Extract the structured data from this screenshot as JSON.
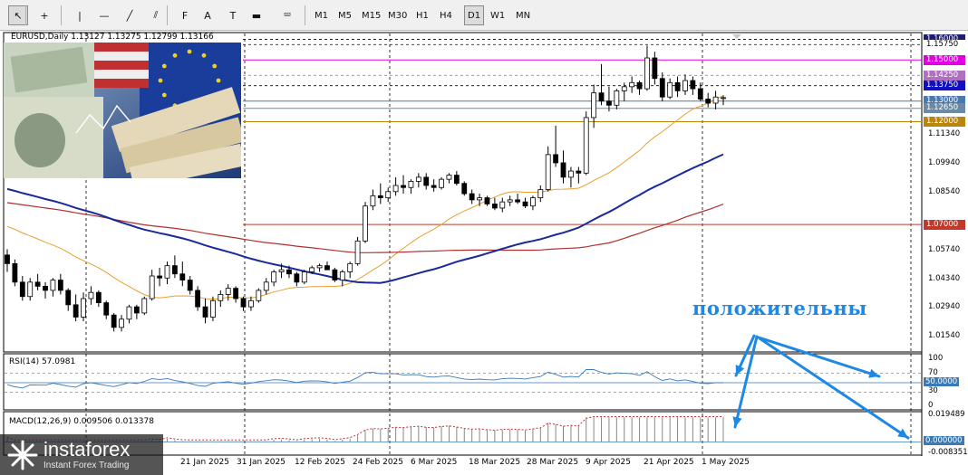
{
  "toolbar": {
    "tools": [
      {
        "name": "cursor-icon",
        "glyph": "↖"
      },
      {
        "name": "crosshair-icon",
        "glyph": "+"
      },
      {
        "name": "vertical-line-icon",
        "glyph": "|"
      },
      {
        "name": "horizontal-line-icon",
        "glyph": "—"
      },
      {
        "name": "trendline-icon",
        "glyph": "╱"
      },
      {
        "name": "channel-icon",
        "glyph": "⫽"
      },
      {
        "name": "fibonacci-icon",
        "glyph": "F"
      },
      {
        "name": "text-icon",
        "glyph": "A"
      },
      {
        "name": "text-label-icon",
        "glyph": "T"
      },
      {
        "name": "rectangle-icon",
        "glyph": "▬"
      },
      {
        "name": "shapes-icon",
        "glyph": "⮹"
      }
    ],
    "timeframes": [
      "M1",
      "M5",
      "M15",
      "M30",
      "H1",
      "H4",
      "D1",
      "W1",
      "MN"
    ],
    "active_timeframe": "D1"
  },
  "symbol_line": "EURUSD,Daily  1.13127 1.13275 1.12799 1.13166",
  "rsi_label": "RSI(14) 57.0981",
  "macd_label": "MACD(12,26,9) 0.009506 0.013378",
  "annotation": "положительны",
  "logo": {
    "brand": "instaforex",
    "tagline": "Instant Forex Trading"
  },
  "price_axis": [
    "1.11340",
    "1.09940",
    "1.08540",
    "1.05740",
    "1.04340",
    "1.02940",
    "1.01540"
  ],
  "price_tags": [
    {
      "label": "1.16000",
      "bg": "#1e1e70",
      "fg": "#ffffff"
    },
    {
      "label": "1.15750",
      "bg": "#ffffff",
      "fg": "#000000"
    },
    {
      "label": "1.15000",
      "bg": "#e000e0",
      "fg": "#ffffff"
    },
    {
      "label": "1.14250",
      "bg": "#b070c0",
      "fg": "#ffffff"
    },
    {
      "label": "1.13750",
      "bg": "#1010c0",
      "fg": "#ffffff"
    },
    {
      "label": "1.13000",
      "bg": "#4a78b0",
      "fg": "#ffffff"
    },
    {
      "label": "1.12650",
      "bg": "#6a8aa8",
      "fg": "#ffffff"
    },
    {
      "label": "1.12000",
      "bg": "#b8860b",
      "fg": "#ffffff"
    },
    {
      "label": "1.07000",
      "bg": "#c0392b",
      "fg": "#ffffff"
    }
  ],
  "rsi_axis": [
    "100",
    "70",
    "50.0000",
    "30",
    "0"
  ],
  "macd_axis": [
    "0.019489",
    "0.000000",
    "-0.008351"
  ],
  "date_axis": [
    "21 Jan 2025",
    "31 Jan 2025",
    "12 Feb 2025",
    "24 Feb 2025",
    "6 Mar 2025",
    "18 Mar 2025",
    "28 Mar 2025",
    "9 Apr 2025",
    "21 Apr 2025",
    "1 May 2025"
  ],
  "colors": {
    "bull": "#ffffff",
    "bear": "#000000",
    "ma_fast": "#e8a030",
    "ma_mid": "#b03030",
    "ma_slow": "#1a2a9a",
    "rsi": "#3a7ab8",
    "macd_hist": "#888888",
    "macd_signal": "#c03030",
    "arrow": "#1e88e5"
  },
  "chart_data": {
    "type": "candlestick",
    "symbol": "EURUSD",
    "timeframe": "Daily",
    "last_bar": {
      "open": 1.13127,
      "high": 1.13275,
      "low": 1.12799,
      "close": 1.13166
    },
    "ylim": [
      1.0085,
      1.162
    ],
    "ohlc": [
      [
        1.0552,
        1.058,
        1.047,
        1.051
      ],
      [
        1.051,
        1.053,
        1.04,
        1.042
      ],
      [
        1.042,
        1.045,
        1.033,
        1.035
      ],
      [
        1.035,
        1.044,
        1.033,
        1.042
      ],
      [
        1.042,
        1.046,
        1.038,
        1.04
      ],
      [
        1.04,
        1.042,
        1.034,
        1.038
      ],
      [
        1.038,
        1.044,
        1.035,
        1.043
      ],
      [
        1.043,
        1.046,
        1.036,
        1.038
      ],
      [
        1.038,
        1.039,
        1.028,
        1.031
      ],
      [
        1.031,
        1.036,
        1.023,
        1.025
      ],
      [
        1.025,
        1.037,
        1.023,
        1.034
      ],
      [
        1.034,
        1.04,
        1.031,
        1.037
      ],
      [
        1.037,
        1.038,
        1.03,
        1.032
      ],
      [
        1.032,
        1.033,
        1.024,
        1.026
      ],
      [
        1.026,
        1.027,
        1.018,
        1.02
      ],
      [
        1.02,
        1.026,
        1.018,
        1.024
      ],
      [
        1.024,
        1.031,
        1.022,
        1.03
      ],
      [
        1.03,
        1.031,
        1.024,
        1.027
      ],
      [
        1.027,
        1.035,
        1.026,
        1.034
      ],
      [
        1.034,
        1.048,
        1.033,
        1.045
      ],
      [
        1.045,
        1.049,
        1.04,
        1.044
      ],
      [
        1.044,
        1.052,
        1.041,
        1.05
      ],
      [
        1.05,
        1.055,
        1.044,
        1.046
      ],
      [
        1.046,
        1.052,
        1.04,
        1.043
      ],
      [
        1.043,
        1.045,
        1.036,
        1.038
      ],
      [
        1.038,
        1.04,
        1.028,
        1.03
      ],
      [
        1.03,
        1.034,
        1.022,
        1.025
      ],
      [
        1.025,
        1.035,
        1.023,
        1.033
      ],
      [
        1.033,
        1.038,
        1.03,
        1.036
      ],
      [
        1.036,
        1.041,
        1.033,
        1.039
      ],
      [
        1.039,
        1.04,
        1.032,
        1.034
      ],
      [
        1.034,
        1.035,
        1.028,
        1.03
      ],
      [
        1.03,
        1.035,
        1.028,
        1.033
      ],
      [
        1.033,
        1.039,
        1.032,
        1.038
      ],
      [
        1.038,
        1.044,
        1.036,
        1.042
      ],
      [
        1.042,
        1.048,
        1.04,
        1.047
      ],
      [
        1.047,
        1.051,
        1.044,
        1.048
      ],
      [
        1.048,
        1.05,
        1.044,
        1.046
      ],
      [
        1.046,
        1.047,
        1.04,
        1.042
      ],
      [
        1.042,
        1.048,
        1.041,
        1.047
      ],
      [
        1.047,
        1.05,
        1.046,
        1.049
      ],
      [
        1.049,
        1.051,
        1.047,
        1.05
      ],
      [
        1.05,
        1.052,
        1.048,
        1.048
      ],
      [
        1.048,
        1.049,
        1.042,
        1.043
      ],
      [
        1.043,
        1.048,
        1.04,
        1.047
      ],
      [
        1.047,
        1.052,
        1.044,
        1.051
      ],
      [
        1.051,
        1.064,
        1.05,
        1.062
      ],
      [
        1.062,
        1.081,
        1.061,
        1.079
      ],
      [
        1.079,
        1.087,
        1.077,
        1.084
      ],
      [
        1.084,
        1.09,
        1.08,
        1.083
      ],
      [
        1.083,
        1.088,
        1.081,
        1.086
      ],
      [
        1.086,
        1.093,
        1.084,
        1.089
      ],
      [
        1.089,
        1.094,
        1.085,
        1.088
      ],
      [
        1.088,
        1.092,
        1.085,
        1.091
      ],
      [
        1.091,
        1.095,
        1.088,
        1.093
      ],
      [
        1.093,
        1.095,
        1.087,
        1.089
      ],
      [
        1.089,
        1.092,
        1.086,
        1.088
      ],
      [
        1.088,
        1.093,
        1.087,
        1.092
      ],
      [
        1.092,
        1.095,
        1.09,
        1.094
      ],
      [
        1.094,
        1.096,
        1.089,
        1.09
      ],
      [
        1.09,
        1.091,
        1.084,
        1.085
      ],
      [
        1.085,
        1.087,
        1.08,
        1.082
      ],
      [
        1.082,
        1.085,
        1.079,
        1.083
      ],
      [
        1.083,
        1.084,
        1.079,
        1.08
      ],
      [
        1.08,
        1.083,
        1.077,
        1.078
      ],
      [
        1.078,
        1.083,
        1.076,
        1.081
      ],
      [
        1.081,
        1.084,
        1.079,
        1.082
      ],
      [
        1.082,
        1.085,
        1.08,
        1.081
      ],
      [
        1.081,
        1.083,
        1.078,
        1.079
      ],
      [
        1.079,
        1.084,
        1.077,
        1.083
      ],
      [
        1.083,
        1.089,
        1.081,
        1.087
      ],
      [
        1.087,
        1.108,
        1.086,
        1.104
      ],
      [
        1.104,
        1.118,
        1.098,
        1.1
      ],
      [
        1.1,
        1.106,
        1.09,
        1.093
      ],
      [
        1.093,
        1.098,
        1.088,
        1.096
      ],
      [
        1.096,
        1.098,
        1.09,
        1.095
      ],
      [
        1.095,
        1.125,
        1.094,
        1.122
      ],
      [
        1.122,
        1.138,
        1.117,
        1.134
      ],
      [
        1.134,
        1.148,
        1.128,
        1.13
      ],
      [
        1.13,
        1.137,
        1.125,
        1.128
      ],
      [
        1.128,
        1.136,
        1.126,
        1.135
      ],
      [
        1.135,
        1.139,
        1.13,
        1.137
      ],
      [
        1.137,
        1.142,
        1.134,
        1.139
      ],
      [
        1.139,
        1.14,
        1.133,
        1.136
      ],
      [
        1.136,
        1.157,
        1.135,
        1.151
      ],
      [
        1.151,
        1.154,
        1.138,
        1.141
      ],
      [
        1.141,
        1.144,
        1.13,
        1.132
      ],
      [
        1.132,
        1.141,
        1.131,
        1.139
      ],
      [
        1.139,
        1.142,
        1.132,
        1.135
      ],
      [
        1.135,
        1.143,
        1.133,
        1.14
      ],
      [
        1.14,
        1.142,
        1.133,
        1.136
      ],
      [
        1.136,
        1.139,
        1.13,
        1.131
      ],
      [
        1.131,
        1.134,
        1.127,
        1.129
      ],
      [
        1.129,
        1.135,
        1.126,
        1.132
      ],
      [
        1.1313,
        1.1328,
        1.128,
        1.1317
      ]
    ]
  }
}
